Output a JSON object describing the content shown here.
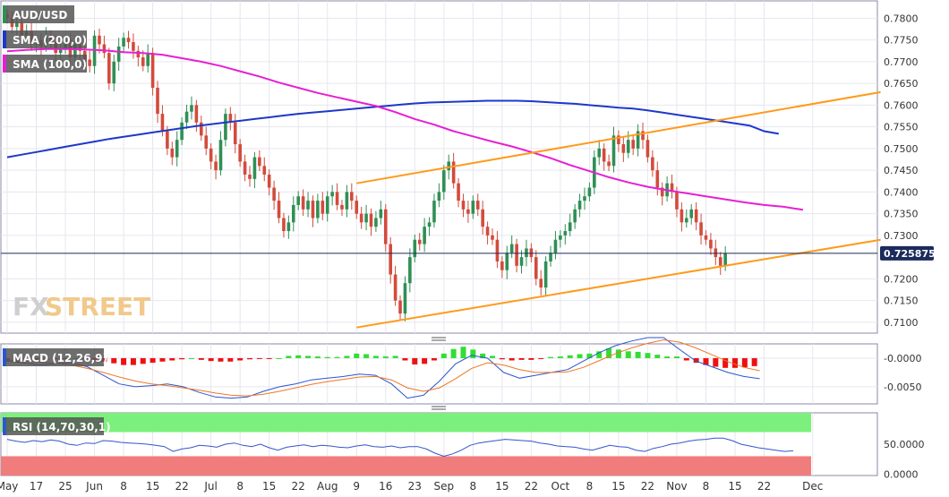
{
  "colors": {
    "up": "#2f8f55",
    "down": "#d24b3c",
    "sma200": "#1e38c8",
    "sma100": "#e620d2",
    "channel": "#ff9a1a",
    "hist_pos": "#33dd33",
    "hist_neg": "#ee1111",
    "macd": "#2a55d0",
    "signal": "#ee7722",
    "rsi": "#3355cc",
    "rsi_over": "#7cf07c",
    "rsi_under": "#f07c7c",
    "grid": "#e6e6ef",
    "border": "#8888aa"
  },
  "legend": {
    "pair": "AUD/USD",
    "sma200": "SMA (200,0)",
    "sma100": "SMA (100,0)",
    "macd": "MACD (12,26,9)",
    "rsi": "RSI (14,70,30,1)"
  },
  "watermark": {
    "fx": "FX",
    "street": "STREET"
  },
  "last_price_label": "0.725875",
  "chart_data": [
    {
      "type": "candlestick",
      "title": "AUD/USD",
      "ylim": [
        0.7075,
        0.784
      ],
      "y_ticks": [
        "0.7800",
        "0.7750",
        "0.7700",
        "0.7650",
        "0.7600",
        "0.7550",
        "0.7500",
        "0.7450",
        "0.7400",
        "0.7350",
        "0.7300",
        "0.7200",
        "0.7150",
        "0.7100"
      ],
      "last_price": 0.725875,
      "x_labels": [
        "May",
        "17",
        "25",
        "Jun",
        "8",
        "15",
        "22",
        "Jul",
        "8",
        "15",
        "22",
        "Aug",
        "9",
        "16",
        "23",
        "Sep",
        "8",
        "15",
        "22",
        "Oct",
        "8",
        "15",
        "22",
        "Nov",
        "8",
        "15",
        "22",
        "Dec"
      ],
      "x_label_bars": [
        0,
        6,
        12,
        18,
        24,
        30,
        36,
        42,
        48,
        54,
        60,
        66,
        72,
        78,
        84,
        90,
        96,
        102,
        108,
        114,
        120,
        126,
        132,
        138,
        144,
        150,
        156,
        166
      ],
      "closes": [
        0.78,
        0.778,
        0.779,
        0.776,
        0.777,
        0.774,
        0.775,
        0.7735,
        0.776,
        0.7745,
        0.772,
        0.773,
        0.775,
        0.771,
        0.774,
        0.7725,
        0.7705,
        0.769,
        0.776,
        0.774,
        0.772,
        0.765,
        0.77,
        0.7735,
        0.7755,
        0.7745,
        0.7725,
        0.771,
        0.769,
        0.772,
        0.764,
        0.758,
        0.754,
        0.75,
        0.748,
        0.752,
        0.756,
        0.7585,
        0.76,
        0.756,
        0.753,
        0.75,
        0.747,
        0.745,
        0.752,
        0.758,
        0.756,
        0.751,
        0.747,
        0.744,
        0.743,
        0.748,
        0.746,
        0.744,
        0.741,
        0.738,
        0.734,
        0.731,
        0.733,
        0.737,
        0.739,
        0.736,
        0.738,
        0.734,
        0.738,
        0.735,
        0.739,
        0.74,
        0.737,
        0.736,
        0.74,
        0.738,
        0.735,
        0.733,
        0.735,
        0.732,
        0.734,
        0.736,
        0.728,
        0.721,
        0.715,
        0.712,
        0.719,
        0.725,
        0.729,
        0.728,
        0.732,
        0.733,
        0.738,
        0.74,
        0.745,
        0.747,
        0.742,
        0.738,
        0.736,
        0.735,
        0.738,
        0.736,
        0.732,
        0.73,
        0.729,
        0.724,
        0.722,
        0.726,
        0.728,
        0.723,
        0.725,
        0.727,
        0.725,
        0.72,
        0.718,
        0.724,
        0.726,
        0.729,
        0.73,
        0.731,
        0.733,
        0.736,
        0.738,
        0.739,
        0.741,
        0.748,
        0.75,
        0.747,
        0.746,
        0.753,
        0.751,
        0.749,
        0.752,
        0.75,
        0.754,
        0.752,
        0.748,
        0.745,
        0.741,
        0.739,
        0.742,
        0.74,
        0.736,
        0.733,
        0.734,
        0.736,
        0.733,
        0.73,
        0.729,
        0.727,
        0.725,
        0.723,
        0.7259
      ],
      "sma200": [
        0.748,
        0.7486,
        0.7492,
        0.7498,
        0.7504,
        0.751,
        0.7516,
        0.7522,
        0.7527,
        0.7532,
        0.7537,
        0.7542,
        0.7547,
        0.7552,
        0.7556,
        0.756,
        0.7564,
        0.7568,
        0.7572,
        0.7576,
        0.758,
        0.7583,
        0.7586,
        0.7589,
        0.7592,
        0.7595,
        0.7598,
        0.7601,
        0.7604,
        0.7606,
        0.7607,
        0.7608,
        0.7609,
        0.761,
        0.761,
        0.761,
        0.7609,
        0.7607,
        0.7605,
        0.7603,
        0.76,
        0.7597,
        0.7594,
        0.7592,
        0.7588,
        0.7583,
        0.7578,
        0.7573,
        0.7568,
        0.7563,
        0.7558,
        0.7553,
        0.754,
        0.7534
      ],
      "sma200_start_bar": 0,
      "sma200_step": 3,
      "sma100": [
        0.7724,
        0.7727,
        0.7729,
        0.7729,
        0.7728,
        0.7726,
        0.7722,
        0.772,
        0.7716,
        0.7708,
        0.77,
        0.769,
        0.7678,
        0.7666,
        0.7652,
        0.764,
        0.7628,
        0.7618,
        0.7608,
        0.7598,
        0.7584,
        0.7568,
        0.7555,
        0.754,
        0.7528,
        0.7516,
        0.7505,
        0.7492,
        0.7478,
        0.7462,
        0.7448,
        0.7434,
        0.7422,
        0.7412,
        0.7404,
        0.7397,
        0.739,
        0.7383,
        0.7376,
        0.737,
        0.7366,
        0.7359
      ],
      "sma100_start_bar": 0,
      "sma100_step": 4,
      "channel_upper": [
        [
          72,
          0.742
        ],
        [
          180,
          0.763
        ]
      ],
      "channel_lower": [
        [
          72,
          0.7088
        ],
        [
          180,
          0.729
        ]
      ]
    },
    {
      "type": "bar",
      "title": "MACD (12,26,9)",
      "ylim": [
        -0.008,
        0.0025
      ],
      "y_ticks": [
        "-0.0000",
        "-0.0050"
      ],
      "histogram": [
        -0.0006,
        -0.0007,
        -0.0006,
        -0.0004,
        -0.0003,
        -0.0002,
        -0.0001,
        0.0,
        -0.0001,
        -0.0003,
        -0.0006,
        -0.0009,
        -0.0012,
        -0.0012,
        -0.001,
        -0.0008,
        -0.0006,
        -0.0004,
        -0.0002,
        0.0,
        -0.0003,
        -0.0005,
        -0.0006,
        -0.0006,
        -0.0004,
        -0.0002,
        -0.0001,
        -0.0001,
        0.0,
        0.0004,
        0.0005,
        0.0004,
        0.0003,
        0.0002,
        0.0002,
        0.0004,
        0.0008,
        0.0007,
        0.0004,
        0.0003,
        0.0004,
        -0.0004,
        -0.0011,
        -0.001,
        -0.0004,
        0.0008,
        0.0016,
        0.002,
        0.0015,
        0.0008,
        0.0004,
        -0.0002,
        -0.0004,
        -0.0003,
        -0.0003,
        -0.0001,
        0.0002,
        0.0003,
        0.0005,
        0.0007,
        0.0008,
        0.0012,
        0.0017,
        0.0015,
        0.0012,
        0.0011,
        0.0009,
        0.0006,
        0.0003,
        0.0003,
        -0.0004,
        -0.0008,
        -0.0012,
        -0.0015,
        -0.0017,
        -0.0017,
        -0.0016,
        -0.0014
      ],
      "histogram_start_bar": 0,
      "histogram_step": 2,
      "macd_line": [
        -0.0005,
        -0.0008,
        -0.0012,
        -0.001,
        -0.0008,
        -0.0015,
        -0.003,
        -0.0045,
        -0.005,
        -0.0048,
        -0.0045,
        -0.005,
        -0.006,
        -0.0068,
        -0.007,
        -0.0068,
        -0.0058,
        -0.005,
        -0.0045,
        -0.0038,
        -0.0035,
        -0.0032,
        -0.0028,
        -0.003,
        -0.0045,
        -0.007,
        -0.0065,
        -0.004,
        -0.001,
        0.0005,
        0.0,
        -0.0025,
        -0.0035,
        -0.003,
        -0.0025,
        -0.002,
        -0.0005,
        0.001,
        0.0022,
        0.003,
        0.0036,
        0.0036,
        0.0015,
        -0.0005,
        -0.0015,
        -0.0025,
        -0.0032,
        -0.0036
      ],
      "signal_line": [
        -0.0003,
        -0.0005,
        -0.0007,
        -0.0009,
        -0.0012,
        -0.0018,
        -0.0025,
        -0.0033,
        -0.004,
        -0.0045,
        -0.0048,
        -0.0052,
        -0.0056,
        -0.0061,
        -0.0065,
        -0.0066,
        -0.0063,
        -0.0058,
        -0.0052,
        -0.0046,
        -0.0041,
        -0.0037,
        -0.0033,
        -0.0032,
        -0.0038,
        -0.0052,
        -0.0058,
        -0.0052,
        -0.0036,
        -0.0018,
        -0.0008,
        -0.0012,
        -0.002,
        -0.0025,
        -0.0025,
        -0.0024,
        -0.0016,
        -0.0004,
        0.0008,
        0.0018,
        0.0026,
        0.0032,
        0.0028,
        0.0018,
        0.0006,
        -0.0006,
        -0.0016,
        -0.0022
      ],
      "lines_start_bar": 0,
      "lines_step": 3.3
    },
    {
      "type": "line",
      "title": "RSI (14,70,30,1)",
      "ylim": [
        -2,
        102
      ],
      "y_ticks": [
        "50.0000",
        "0.0000"
      ],
      "overbought": 70,
      "oversold": 30,
      "values": [
        58,
        55,
        53,
        56,
        54,
        57,
        55,
        50,
        48,
        52,
        51,
        56,
        55,
        53,
        52,
        51,
        50,
        48,
        46,
        38,
        42,
        44,
        48,
        47,
        45,
        50,
        52,
        48,
        46,
        50,
        44,
        40,
        45,
        47,
        49,
        46,
        48,
        47,
        45,
        44,
        47,
        49,
        46,
        45,
        47,
        44,
        46,
        46,
        42,
        35,
        30,
        34,
        40,
        48,
        52,
        54,
        56,
        58,
        57,
        56,
        55,
        52,
        50,
        47,
        46,
        45,
        42,
        40,
        44,
        48,
        46,
        45,
        40,
        38,
        43,
        46,
        50,
        52,
        55,
        57,
        58,
        60,
        60,
        56,
        50,
        47,
        44,
        42,
        40,
        38,
        39
      ],
      "values_start_bar": 0,
      "values_step": 1.8
    }
  ]
}
